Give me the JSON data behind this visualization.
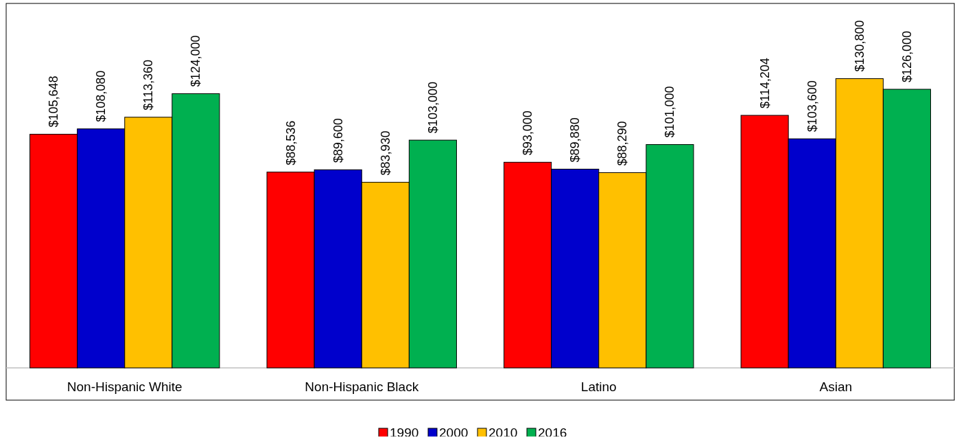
{
  "chart_data": {
    "type": "bar",
    "categories": [
      "Non-Hispanic White",
      "Non-Hispanic Black",
      "Latino",
      "Asian"
    ],
    "series": [
      {
        "name": "1990",
        "color": "#ff0000",
        "values": [
          105648,
          88536,
          93000,
          114204
        ],
        "value_labels": [
          "$105,648",
          "$88,536",
          "$93,000",
          "$114,204"
        ]
      },
      {
        "name": "2000",
        "color": "#0000cc",
        "values": [
          108080,
          89600,
          89880,
          103600
        ],
        "value_labels": [
          "$108,080",
          "$89,600",
          "$89,880",
          "$103,600"
        ]
      },
      {
        "name": "2010",
        "color": "#ffc000",
        "values": [
          113360,
          83930,
          88290,
          130800
        ],
        "value_labels": [
          "$113,360",
          "$83,930",
          "$88,290",
          "$130,800"
        ]
      },
      {
        "name": "2016",
        "color": "#00b050",
        "values": [
          124000,
          103000,
          101000,
          126000
        ],
        "value_labels": [
          "$124,000",
          "$103,000",
          "$101,000",
          "$126,000"
        ]
      }
    ],
    "legend": "bottom",
    "tick_labels": "x"
  }
}
